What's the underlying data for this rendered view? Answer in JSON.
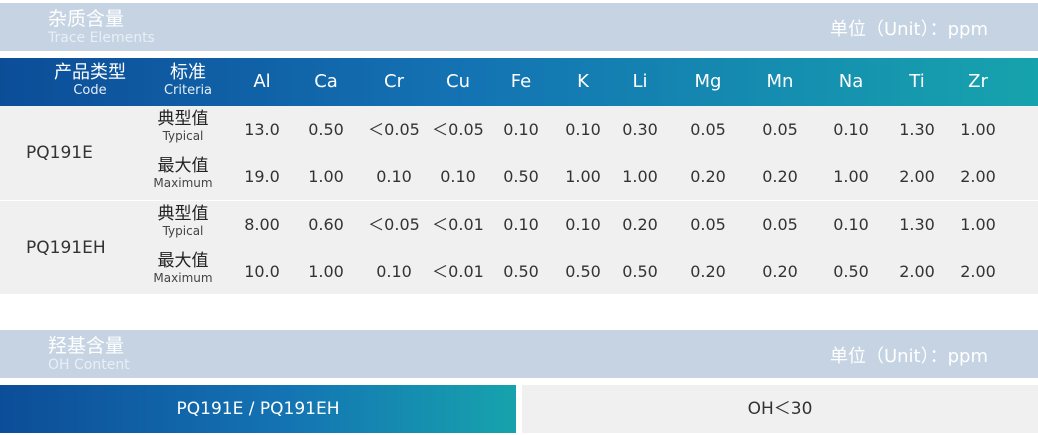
{
  "trace": {
    "title_zh": "杂质含量",
    "title_en": "Trace Elements",
    "unit": "单位（Unit）：ppm",
    "header": {
      "code_zh": "产品类型",
      "code_en": "Code",
      "criteria_zh": "标准",
      "criteria_en": "Criteria",
      "elements": [
        "Al",
        "Ca",
        "Cr",
        "Cu",
        "Fe",
        "K",
        "Li",
        "Mg",
        "Mn",
        "Na",
        "Ti",
        "Zr"
      ]
    },
    "products": [
      {
        "code": "PQ191E",
        "rows": [
          {
            "zh": "典型值",
            "en": "Typical",
            "values": [
              "13.0",
              "0.50",
              "＜0.05",
              "＜0.05",
              "0.10",
              "0.10",
              "0.30",
              "0.05",
              "0.05",
              "0.10",
              "1.30",
              "1.00"
            ]
          },
          {
            "zh": "最大值",
            "en": "Maximum",
            "values": [
              "19.0",
              "1.00",
              "0.10",
              "0.10",
              "0.50",
              "1.00",
              "1.00",
              "0.20",
              "0.20",
              "1.00",
              "2.00",
              "2.00"
            ]
          }
        ]
      },
      {
        "code": "PQ191EH",
        "rows": [
          {
            "zh": "典型值",
            "en": "Typical",
            "values": [
              "8.00",
              "0.60",
              "＜0.05",
              "＜0.01",
              "0.10",
              "0.10",
              "0.20",
              "0.05",
              "0.05",
              "0.10",
              "1.30",
              "1.00"
            ]
          },
          {
            "zh": "最大值",
            "en": "Maximum",
            "values": [
              "10.0",
              "1.00",
              "0.10",
              "＜0.01",
              "0.50",
              "0.50",
              "0.50",
              "0.20",
              "0.20",
              "0.50",
              "2.00",
              "2.00"
            ]
          }
        ]
      }
    ]
  },
  "oh": {
    "title_zh": "羟基含量",
    "title_en": "OH Content",
    "unit": "单位（Unit）：ppm",
    "product": "PQ191E / PQ191EH",
    "value": "OH＜30"
  }
}
